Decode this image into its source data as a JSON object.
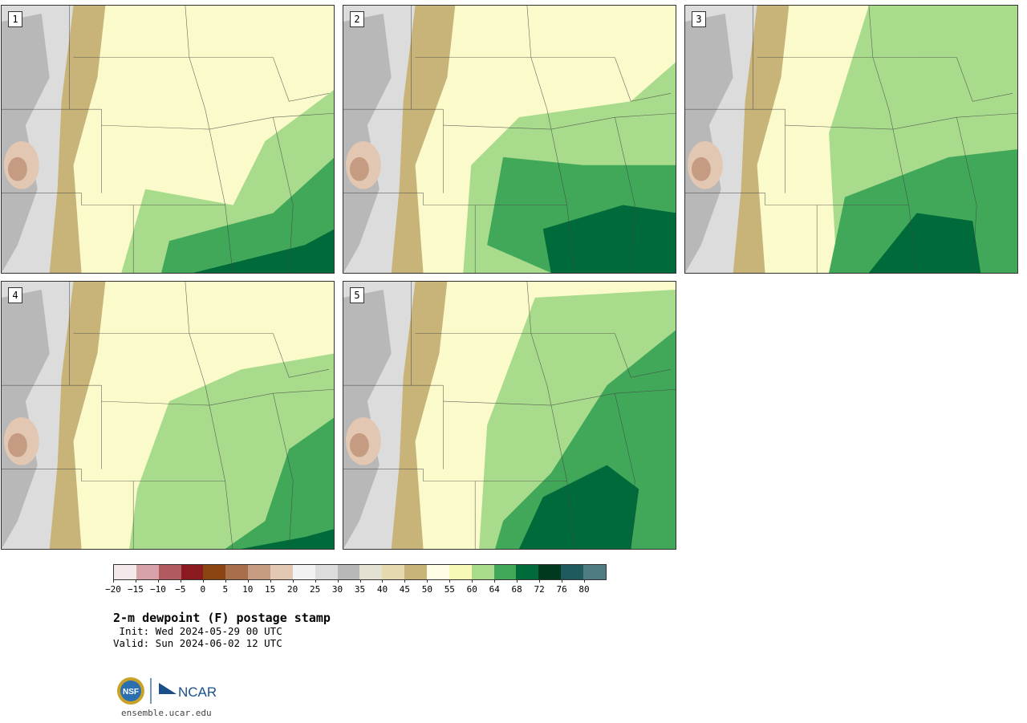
{
  "figure": {
    "title": "2-m dewpoint (F) postage stamp",
    "init_label": " Init: Wed 2024-05-29 00 UTC",
    "valid_label": "Valid: Sun 2024-06-02 12 UTC",
    "website": "ensemble.ucar.edu"
  },
  "logos": {
    "nsf_text": "NSF",
    "ncar_text": "NCAR"
  },
  "panels": [
    {
      "number": "1"
    },
    {
      "number": "2"
    },
    {
      "number": "3"
    },
    {
      "number": "4"
    },
    {
      "number": "5"
    }
  ],
  "colorbar": {
    "tick_labels": [
      "−20",
      "−15",
      "−10",
      "−5",
      "0",
      "5",
      "10",
      "15",
      "20",
      "25",
      "30",
      "35",
      "40",
      "45",
      "50",
      "55",
      "60",
      "64",
      "68",
      "72",
      "76",
      "80"
    ],
    "colors": [
      "#f3e8ea",
      "#d7a2a8",
      "#b15a60",
      "#8a1a20",
      "#8b4513",
      "#a8704a",
      "#c59c82",
      "#e2c7b3",
      "#f2f2f2",
      "#dcdcdc",
      "#b8b8b8",
      "#e4e1d3",
      "#e6d9b0",
      "#c8b478",
      "#fffde6",
      "#f7f9b7",
      "#a8dc8c",
      "#41a85a",
      "#006b3a",
      "#00391e",
      "#1e5a5e",
      "#4e7c82"
    ]
  }
}
